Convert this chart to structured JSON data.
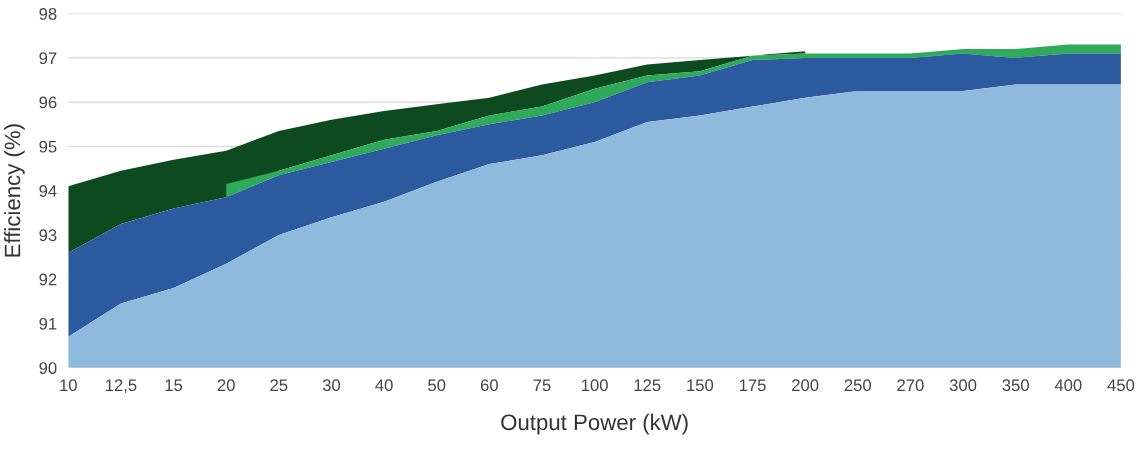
{
  "chart_data": {
    "type": "area",
    "xlabel": "Output Power (kW)",
    "ylabel": "Efficiency (%)",
    "categories": [
      "10",
      "12,5",
      "15",
      "20",
      "25",
      "30",
      "40",
      "50",
      "60",
      "75",
      "100",
      "125",
      "150",
      "175",
      "200",
      "250",
      "270",
      "300",
      "350",
      "400",
      "450"
    ],
    "series": [
      {
        "color": "#0e4a1f",
        "values": [
          94.1,
          94.45,
          94.7,
          94.9,
          95.35,
          95.6,
          95.8,
          95.95,
          96.1,
          96.4,
          96.6,
          96.85,
          96.95,
          97.05,
          97.15,
          null,
          null,
          null,
          null,
          null,
          null
        ]
      },
      {
        "color": "#2fa95a",
        "values": [
          null,
          null,
          null,
          94.15,
          94.45,
          94.8,
          95.15,
          95.35,
          95.7,
          95.9,
          96.3,
          96.6,
          96.7,
          97.05,
          97.1,
          97.1,
          97.1,
          97.2,
          97.2,
          97.3,
          97.3
        ]
      },
      {
        "color": "#2b5a9e",
        "values": [
          92.6,
          93.25,
          93.6,
          93.85,
          94.35,
          94.65,
          94.95,
          95.25,
          95.5,
          95.7,
          96.0,
          96.45,
          96.6,
          96.95,
          97.0,
          97.0,
          97.0,
          97.1,
          97.0,
          97.1,
          97.1
        ]
      },
      {
        "color": "#8fbadd",
        "values": [
          90.7,
          91.45,
          91.8,
          92.35,
          93.0,
          93.4,
          93.75,
          94.2,
          94.6,
          94.8,
          95.1,
          95.55,
          95.7,
          95.9,
          96.1,
          96.25,
          96.25,
          96.25,
          96.4,
          96.4,
          96.4
        ]
      }
    ],
    "ylim": [
      90,
      98
    ],
    "yticks": [
      90,
      91,
      92,
      93,
      94,
      95,
      96,
      97,
      98
    ],
    "grid": "y"
  }
}
